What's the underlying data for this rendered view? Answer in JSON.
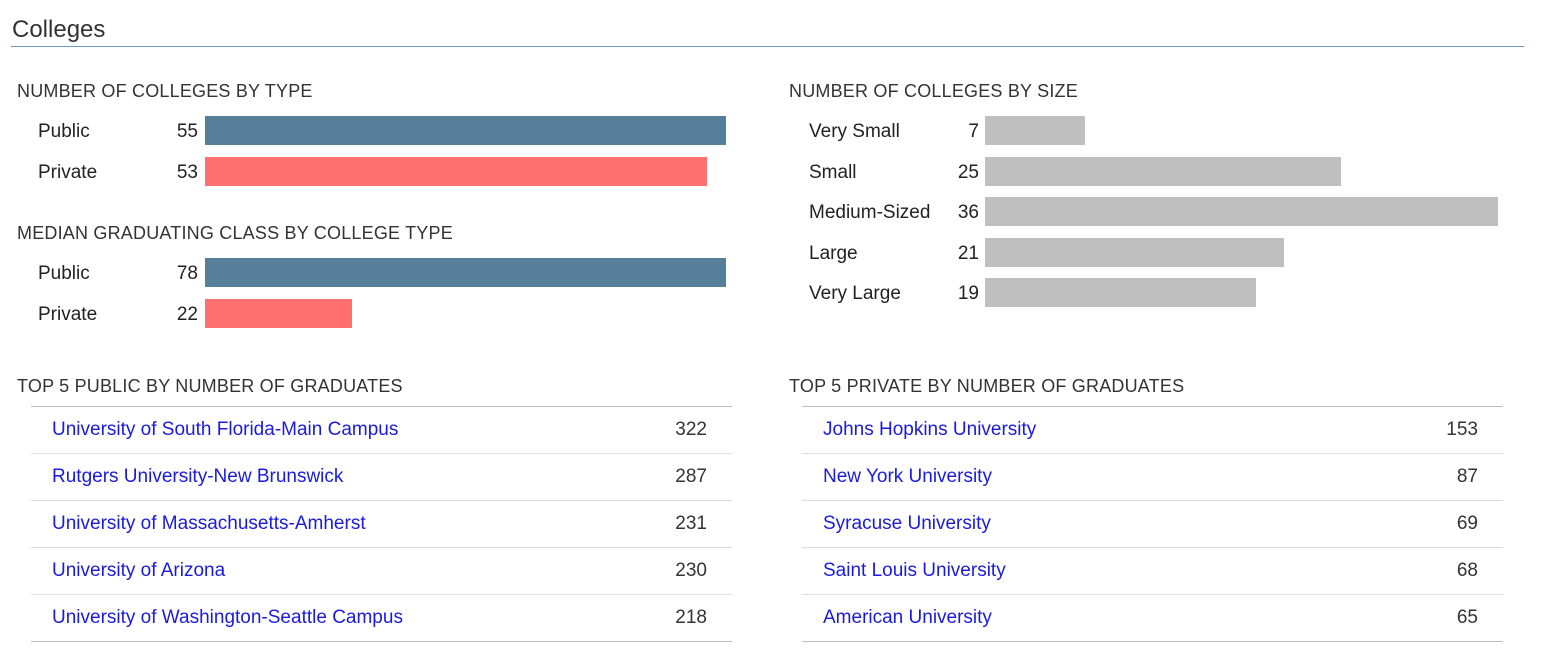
{
  "page": {
    "title": "Colleges"
  },
  "colors": {
    "public": "#56809a",
    "private": "#ff6f6f",
    "size": "#bfbfbf",
    "link": "#1a1ae0"
  },
  "by_type": {
    "title": "NUMBER OF COLLEGES BY TYPE",
    "items": [
      {
        "label": "Public",
        "value": 55,
        "value_text": "55"
      },
      {
        "label": "Private",
        "value": 53,
        "value_text": "53"
      }
    ]
  },
  "median_class": {
    "title": "MEDIAN GRADUATING CLASS BY COLLEGE TYPE",
    "items": [
      {
        "label": "Public",
        "value": 78,
        "value_text": "78"
      },
      {
        "label": "Private",
        "value": 22,
        "value_text": "22"
      }
    ]
  },
  "by_size": {
    "title": "NUMBER OF COLLEGES BY SIZE",
    "items": [
      {
        "label": "Very Small",
        "value": 7,
        "value_text": "7"
      },
      {
        "label": "Small",
        "value": 25,
        "value_text": "25"
      },
      {
        "label": "Medium-Sized",
        "value": 36,
        "value_text": "36"
      },
      {
        "label": "Large",
        "value": 21,
        "value_text": "21"
      },
      {
        "label": "Very Large",
        "value": 19,
        "value_text": "19"
      }
    ]
  },
  "top_public": {
    "title": "TOP 5 PUBLIC BY NUMBER OF GRADUATES",
    "rows": [
      {
        "name": "University of South Florida-Main Campus",
        "count": "322"
      },
      {
        "name": "Rutgers University-New Brunswick",
        "count": "287"
      },
      {
        "name": "University of Massachusetts-Amherst",
        "count": "231"
      },
      {
        "name": "University of Arizona",
        "count": "230"
      },
      {
        "name": "University of Washington-Seattle Campus",
        "count": "218"
      }
    ]
  },
  "top_private": {
    "title": "TOP 5 PRIVATE BY NUMBER OF GRADUATES",
    "rows": [
      {
        "name": "Johns Hopkins University",
        "count": "153"
      },
      {
        "name": "New York University",
        "count": "87"
      },
      {
        "name": "Syracuse University",
        "count": "69"
      },
      {
        "name": "Saint Louis University",
        "count": "68"
      },
      {
        "name": "American University",
        "count": "65"
      }
    ]
  }
}
